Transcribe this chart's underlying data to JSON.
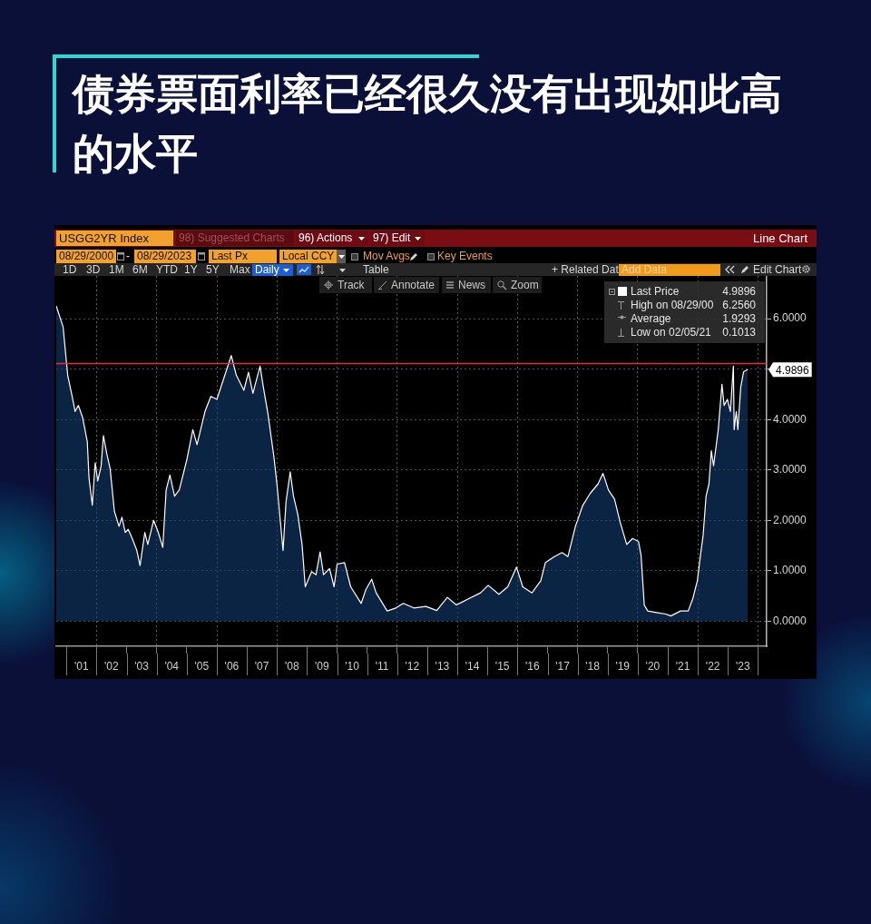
{
  "chart_data": {
    "type": "area",
    "title": "债券票面利率已经很久没有出现如此高的水平",
    "series": [
      {
        "name": "Last Price",
        "color": "#ffffff",
        "x": [
          "2000-08-29",
          "2000-10-15",
          "2000-11-20",
          "2001-01-15",
          "2001-03-10",
          "2001-04-15",
          "2001-05-25",
          "2001-07-15",
          "2001-09-10",
          "2001-10-01",
          "2001-11-10",
          "2001-12-15",
          "2002-01-15",
          "2002-02-25",
          "2002-03-25",
          "2002-05-05",
          "2002-06-15",
          "2002-08-05",
          "2002-10-01",
          "2002-11-05",
          "2002-12-15",
          "2003-01-20",
          "2003-03-10",
          "2003-05-05",
          "2003-06-13",
          "2003-08-10",
          "2003-09-15",
          "2003-11-25",
          "2004-01-20",
          "2004-03-15",
          "2004-04-25",
          "2004-06-10",
          "2004-08-05",
          "2004-10-01",
          "2005-01-01",
          "2005-03-15",
          "2005-05-05",
          "2005-08-10",
          "2005-10-20",
          "2006-01-01",
          "2006-03-15",
          "2006-06-25",
          "2006-08-25",
          "2006-11-25",
          "2007-01-20",
          "2007-03-15",
          "2007-06-10",
          "2007-07-20",
          "2007-09-15",
          "2007-11-25",
          "2008-01-01",
          "2008-03-15",
          "2008-04-20",
          "2008-06-10",
          "2008-07-20",
          "2008-09-10",
          "2008-11-01",
          "2008-12-10",
          "2009-02-25",
          "2009-04-20",
          "2009-06-08",
          "2009-07-20",
          "2009-10-01",
          "2009-11-25",
          "2010-01-01",
          "2010-04-01",
          "2010-06-15",
          "2010-10-20",
          "2010-12-15",
          "2011-02-25",
          "2011-04-20",
          "2011-09-01",
          "2011-12-15",
          "2012-03-15",
          "2012-07-20",
          "2012-12-15",
          "2013-04-25",
          "2013-09-01",
          "2013-12-20",
          "2014-05-15",
          "2014-10-10",
          "2015-01-10",
          "2015-05-20",
          "2015-09-05",
          "2015-12-20",
          "2016-03-05",
          "2016-06-25",
          "2016-10-10",
          "2016-12-05",
          "2017-03-25",
          "2017-06-25",
          "2017-09-05",
          "2017-12-05",
          "2018-03-05",
          "2018-06-05",
          "2018-09-05",
          "2018-11-05",
          "2019-01-10",
          "2019-03-25",
          "2019-06-05",
          "2019-08-20",
          "2019-10-30",
          "2020-01-10",
          "2020-02-10",
          "2020-03-20",
          "2020-05-01",
          "2020-08-15",
          "2020-12-05",
          "2021-02-05",
          "2021-06-05",
          "2021-09-05",
          "2021-10-30",
          "2021-12-25",
          "2022-01-30",
          "2022-03-05",
          "2022-04-10",
          "2022-05-15",
          "2022-06-13",
          "2022-07-10",
          "2022-09-05",
          "2022-10-20",
          "2022-11-15",
          "2022-12-25",
          "2023-01-30",
          "2023-03-08",
          "2023-03-17",
          "2023-04-12",
          "2023-05-01",
          "2023-06-05",
          "2023-07-10",
          "2023-08-29"
        ],
        "values": [
          6.256,
          6.02,
          5.84,
          4.88,
          4.46,
          4.16,
          4.28,
          4.04,
          3.56,
          2.84,
          2.3,
          3.14,
          2.78,
          3.08,
          3.68,
          3.32,
          3.02,
          2.18,
          1.88,
          2.06,
          1.76,
          1.82,
          1.64,
          1.4,
          1.1,
          1.76,
          1.52,
          2.0,
          1.76,
          1.46,
          2.6,
          2.9,
          2.48,
          2.6,
          3.2,
          3.8,
          3.5,
          4.16,
          4.46,
          4.4,
          4.76,
          5.27,
          4.88,
          4.58,
          4.94,
          4.52,
          5.06,
          4.64,
          4.1,
          3.26,
          2.72,
          1.4,
          2.36,
          2.96,
          2.48,
          2.12,
          1.52,
          0.68,
          0.98,
          0.92,
          1.37,
          0.92,
          1.04,
          0.68,
          1.13,
          1.16,
          0.68,
          0.35,
          0.62,
          0.83,
          0.56,
          0.2,
          0.26,
          0.35,
          0.26,
          0.29,
          0.21,
          0.47,
          0.32,
          0.44,
          0.56,
          0.71,
          0.53,
          0.68,
          1.07,
          0.68,
          0.56,
          0.8,
          1.16,
          1.28,
          1.36,
          1.28,
          1.88,
          2.3,
          2.54,
          2.72,
          2.93,
          2.6,
          2.42,
          1.94,
          1.52,
          1.64,
          1.58,
          1.31,
          0.32,
          0.2,
          0.17,
          0.14,
          0.1013,
          0.2,
          0.2,
          0.44,
          0.8,
          1.28,
          1.7,
          2.48,
          2.72,
          3.38,
          3.08,
          3.8,
          4.7,
          4.28,
          4.4,
          4.16,
          5.06,
          3.8,
          4.16,
          3.8,
          4.64,
          4.95,
          4.9896
        ]
      }
    ],
    "xlim": [
      "2000-08-29",
      "2024-04-15"
    ],
    "xticks": [
      {
        "value": "2001-01",
        "label": null
      },
      {
        "value": "2001-07",
        "label": "'01"
      },
      {
        "value": "2002-01",
        "label": null
      },
      {
        "value": "2002-07",
        "label": "'02"
      },
      {
        "value": "2003-01",
        "label": null
      },
      {
        "value": "2003-07",
        "label": "'03"
      },
      {
        "value": "2004-01",
        "label": null
      },
      {
        "value": "2004-07",
        "label": "'04"
      },
      {
        "value": "2005-01",
        "label": null
      },
      {
        "value": "2005-07",
        "label": "'05"
      },
      {
        "value": "2006-01",
        "label": null
      },
      {
        "value": "2006-07",
        "label": "'06"
      },
      {
        "value": "2007-01",
        "label": null
      },
      {
        "value": "2007-07",
        "label": "'07"
      },
      {
        "value": "2008-01",
        "label": null
      },
      {
        "value": "2008-07",
        "label": "'08"
      },
      {
        "value": "2009-01",
        "label": null
      },
      {
        "value": "2009-07",
        "label": "'09"
      },
      {
        "value": "2010-01",
        "label": null
      },
      {
        "value": "2010-07",
        "label": "'10"
      },
      {
        "value": "2011-01",
        "label": null
      },
      {
        "value": "2011-07",
        "label": "'11"
      },
      {
        "value": "2012-01",
        "label": null
      },
      {
        "value": "2012-07",
        "label": "'12"
      },
      {
        "value": "2013-01",
        "label": null
      },
      {
        "value": "2013-07",
        "label": "'13"
      },
      {
        "value": "2014-01",
        "label": null
      },
      {
        "value": "2014-07",
        "label": "'14"
      },
      {
        "value": "2015-01",
        "label": null
      },
      {
        "value": "2015-07",
        "label": "'15"
      },
      {
        "value": "2016-01",
        "label": null
      },
      {
        "value": "2016-07",
        "label": "'16"
      },
      {
        "value": "2017-01",
        "label": null
      },
      {
        "value": "2017-07",
        "label": "'17"
      },
      {
        "value": "2018-01",
        "label": null
      },
      {
        "value": "2018-07",
        "label": "'18"
      },
      {
        "value": "2019-01",
        "label": null
      },
      {
        "value": "2019-07",
        "label": "'19"
      },
      {
        "value": "2020-01",
        "label": null
      },
      {
        "value": "2020-07",
        "label": "'20"
      },
      {
        "value": "2021-01",
        "label": null
      },
      {
        "value": "2021-07",
        "label": "'21"
      },
      {
        "value": "2022-01",
        "label": null
      },
      {
        "value": "2022-07",
        "label": "'22"
      },
      {
        "value": "2023-01",
        "label": null
      },
      {
        "value": "2023-07",
        "label": "'23"
      },
      {
        "value": "2024-01",
        "label": null
      }
    ],
    "ylim": [
      -0.5,
      6.85
    ],
    "yticks": [
      {
        "value": 0,
        "label": "0.0000"
      },
      {
        "value": 1,
        "label": "1.0000"
      },
      {
        "value": 2,
        "label": "2.0000"
      },
      {
        "value": 3,
        "label": "3.0000"
      },
      {
        "value": 4,
        "label": "4.0000"
      },
      {
        "value": 5,
        "label": null
      },
      {
        "value": 6,
        "label": "6.0000"
      }
    ],
    "grid": true,
    "legend": "top right",
    "ref_lines": [
      {
        "axis": "y",
        "value": 5.11,
        "color": "#e8303a"
      }
    ],
    "annotations": [
      "USGG2YR Index",
      "98) Suggested Charts",
      "96) Actions",
      "97) Edit",
      "Line Chart",
      "08/29/2000",
      "-",
      "08/29/2023",
      "Last Px",
      "Local CCY",
      "Mov Avgs",
      "Key Events",
      "1D",
      "3D",
      "1M",
      "6M",
      "YTD",
      "1Y",
      "5Y",
      "Max",
      "Daily",
      "Table",
      "+ Related Dat",
      "Add Data",
      "Edit Chart",
      "Track",
      "Annotate",
      "News",
      "Zoom",
      "4.9896",
      "High on 08/29/00 6.2560",
      "Average 1.9293",
      "Low on 02/05/21 0.1013",
      {
        "text": "4.9896",
        "x": "2023-08-29",
        "y": 4.9896
      }
    ]
  }
}
